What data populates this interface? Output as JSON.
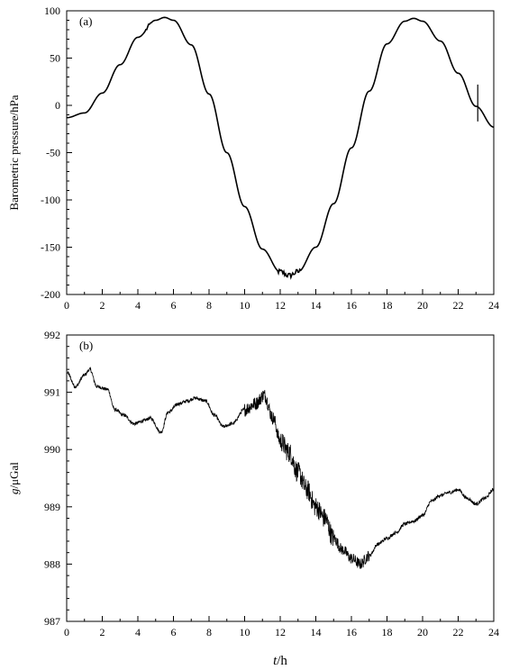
{
  "chart_data": [
    {
      "type": "line",
      "panel_label": "(a)",
      "title": "",
      "xlabel": "",
      "ylabel": "Barometric pressure/hPa",
      "xlim": [
        0,
        24
      ],
      "ylim": [
        -200,
        100
      ],
      "xticks": [
        0,
        2,
        4,
        6,
        8,
        10,
        12,
        14,
        16,
        18,
        20,
        22,
        24
      ],
      "yticks": [
        -200,
        -150,
        -100,
        -50,
        0,
        50,
        100
      ],
      "grid": false,
      "series": [
        {
          "name": "",
          "color": "#000000",
          "x": [
            0,
            1,
            2,
            3,
            4,
            5,
            5.5,
            6,
            7,
            8,
            9,
            10,
            11,
            12,
            12.5,
            13,
            14,
            15,
            16,
            17,
            18,
            19,
            19.5,
            20,
            21,
            22,
            23,
            24
          ],
          "y": [
            -13,
            -8,
            13,
            43,
            72,
            90,
            93,
            90,
            64,
            12,
            -50,
            -107,
            -152,
            -176,
            -180,
            -176,
            -150,
            -104,
            -45,
            15,
            65,
            89,
            92,
            89,
            68,
            34,
            -1,
            -23
          ]
        }
      ],
      "annotations": [
        {
          "x": 23.1,
          "y_low": -17,
          "y_high": 22
        }
      ]
    },
    {
      "type": "line",
      "panel_label": "(b)",
      "title": "",
      "xlabel_italic": "t",
      "xlabel_unit": "/h",
      "ylabel_italic": "g",
      "ylabel_unit": "/μGal",
      "xlim": [
        0,
        24
      ],
      "ylim": [
        987,
        992
      ],
      "xticks": [
        0,
        2,
        4,
        6,
        8,
        10,
        12,
        14,
        16,
        18,
        20,
        22,
        24
      ],
      "yticks": [
        987,
        988,
        989,
        990,
        991,
        992
      ],
      "grid": false,
      "series": [
        {
          "name": "",
          "color": "#000000",
          "x": [
            0,
            0.5,
            1,
            1.3,
            1.7,
            2.3,
            2.7,
            3.2,
            3.8,
            4.3,
            4.7,
            5.3,
            5.7,
            6.3,
            6.8,
            7.2,
            7.8,
            8.3,
            8.8,
            9.3,
            10,
            10.6,
            11.1,
            11.6,
            12,
            12.5,
            13,
            13.5,
            14,
            14.5,
            15,
            15.5,
            16,
            16.5,
            17,
            17.5,
            18,
            18.5,
            19,
            19.5,
            20,
            20.5,
            21,
            21.5,
            22,
            22.5,
            23,
            23.5,
            24
          ],
          "y": [
            991.35,
            991.1,
            991.3,
            991.4,
            991.1,
            991.05,
            990.7,
            990.6,
            990.45,
            990.5,
            990.55,
            990.3,
            990.65,
            990.8,
            990.85,
            990.9,
            990.85,
            990.6,
            990.4,
            990.45,
            990.7,
            990.8,
            990.95,
            990.55,
            990.15,
            989.95,
            989.6,
            989.3,
            989.0,
            988.8,
            988.45,
            988.25,
            988.1,
            988.0,
            988.15,
            988.35,
            988.45,
            988.55,
            988.7,
            988.75,
            988.85,
            989.1,
            989.2,
            989.25,
            989.3,
            989.15,
            989.05,
            989.15,
            989.3
          ]
        }
      ],
      "noise_amplitude": [
        {
          "x_from": 0,
          "x_to": 10,
          "amp": 0.03
        },
        {
          "x_from": 10,
          "x_to": 12,
          "amp": 0.12
        },
        {
          "x_from": 12,
          "x_to": 15,
          "amp": 0.18
        },
        {
          "x_from": 15,
          "x_to": 17,
          "amp": 0.1
        },
        {
          "x_from": 17,
          "x_to": 24,
          "amp": 0.03
        }
      ]
    }
  ]
}
